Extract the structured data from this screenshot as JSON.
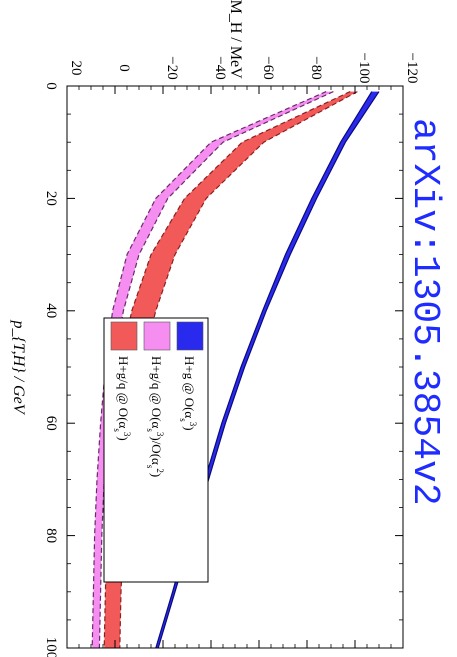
{
  "watermark": "arXiv:1305.3854v2",
  "chart_data": {
    "type": "area",
    "orientation": "rotated 90 degrees clockwise",
    "xlabel": "p_{T,H} / GeV",
    "ylabel": "ΔM_H / MeV",
    "xlim": [
      0,
      100
    ],
    "ylim": [
      -120,
      20
    ],
    "x_ticks": [
      0,
      20,
      40,
      60,
      80,
      100
    ],
    "y_ticks": [
      -120,
      -100,
      -80,
      -60,
      -40,
      -20,
      0,
      20
    ],
    "legend_position": "center",
    "series": [
      {
        "name": "H+g @ O(α_s^3)",
        "color": "#2a2aee",
        "border": "#0a0a7a",
        "dashed_border": false,
        "x": [
          1,
          10,
          20,
          30,
          40,
          50,
          60,
          70,
          80,
          90,
          100
        ],
        "lower": [
          -110,
          -96,
          -84,
          -73,
          -63,
          -54,
          -46,
          -39,
          -32,
          -25,
          -18
        ],
        "upper": [
          -107,
          -94,
          -82,
          -71,
          -61.5,
          -52.5,
          -44.5,
          -37.5,
          -30.5,
          -24,
          -17
        ]
      },
      {
        "name": "H+g/q @ O(α_s^3)",
        "color": "#f25a5a",
        "border": "#8a2020",
        "dashed_border": true,
        "x": [
          1,
          10,
          20,
          30,
          40,
          50,
          60,
          70,
          80,
          90,
          100
        ],
        "lower": [
          -101,
          -62,
          -38,
          -25,
          -17,
          -11,
          -7,
          -5,
          -3.5,
          -2.5,
          -2
        ],
        "upper": [
          -98,
          -53,
          -29,
          -15,
          -7,
          -2,
          1,
          2.5,
          3.5,
          4,
          4.5
        ]
      },
      {
        "name": "H+g/q @ O(α_s^3)/O(α_s^2)",
        "color": "#f58ef0",
        "border": "#6a2a6a",
        "dashed_border": true,
        "x": [
          1,
          10,
          20,
          30,
          40,
          50,
          60,
          70,
          80,
          90,
          100
        ],
        "lower": [
          -91,
          -45,
          -22,
          -10,
          -3.5,
          0.5,
          3,
          4.5,
          5.5,
          6,
          6.5
        ],
        "upper": [
          -88,
          -40,
          -17,
          -5,
          1,
          4,
          6,
          7.5,
          8.5,
          9,
          9.5
        ]
      }
    ]
  },
  "legend": [
    {
      "label": "H+g @ O(α_s^3)",
      "color": "#2a2aee",
      "text_main": "H+g @ O(α",
      "sub": "s",
      "sup": "3",
      "tail": ")"
    },
    {
      "label": "H+g/q @ O(α_s^3)/O(α_s^2)",
      "color": "#f58ef0",
      "text_main": "H+g/q @ O(α",
      "sub": "s",
      "sup": "3",
      "tail": ")/O(α",
      "sub2": "s",
      "sup2": "2",
      "tail2": ")"
    },
    {
      "label": "H+g/q @ O(α_s^3)",
      "color": "#f25a5a",
      "text_main": "H+g/q @ O(α",
      "sub": "s",
      "sup": "3",
      "tail": ")"
    }
  ]
}
